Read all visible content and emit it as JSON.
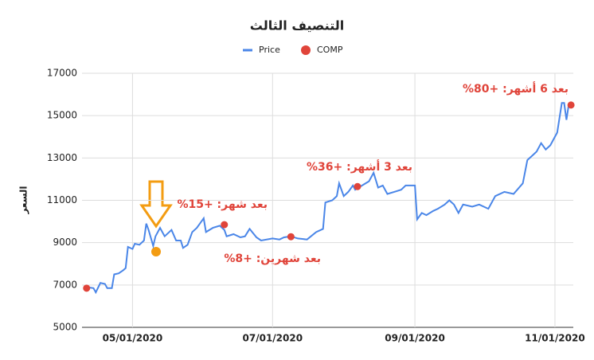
{
  "chart_data": {
    "type": "line",
    "title": "التنصيف الثالث",
    "y_label": "السعر",
    "xlim": [
      "04/09/2020",
      "11/09/2020"
    ],
    "xticks": [
      "05/01/2020",
      "07/01/2020",
      "09/01/2020",
      "11/01/2020"
    ],
    "ylim": [
      5000,
      17000
    ],
    "yticks": [
      5000,
      7000,
      9000,
      11000,
      13000,
      15000,
      17000
    ],
    "grid": true,
    "legend": "top",
    "series": [
      {
        "name": "Price",
        "color": "#4a86e8",
        "type": "line",
        "x": [
          "04/11/2020",
          "04/14/2020",
          "04/15/2020",
          "04/17/2020",
          "04/19/2020",
          "04/20/2020",
          "04/22/2020",
          "04/23/2020",
          "04/25/2020",
          "04/27/2020",
          "04/28/2020",
          "04/29/2020",
          "05/01/2020",
          "05/02/2020",
          "05/04/2020",
          "05/06/2020",
          "05/07/2020",
          "05/08/2020",
          "05/10/2020",
          "05/11/2020",
          "05/13/2020",
          "05/15/2020",
          "05/18/2020",
          "05/20/2020",
          "05/22/2020",
          "05/23/2020",
          "05/25/2020",
          "05/27/2020",
          "05/29/2020",
          "06/01/2020",
          "06/02/2020",
          "06/05/2020",
          "06/08/2020",
          "06/10/2020",
          "06/11/2020",
          "06/14/2020",
          "06/17/2020",
          "06/19/2020",
          "06/21/2020",
          "06/24/2020",
          "06/26/2020",
          "07/01/2020",
          "07/04/2020",
          "07/06/2020",
          "07/09/2020",
          "07/12/2020",
          "07/16/2020",
          "07/20/2020",
          "07/23/2020",
          "07/24/2020",
          "07/27/2020",
          "07/29/2020",
          "07/30/2020",
          "08/01/2020",
          "08/03/2020",
          "08/05/2020",
          "08/06/2020",
          "08/09/2020",
          "08/12/2020",
          "08/14/2020",
          "08/16/2020",
          "08/18/2020",
          "08/20/2020",
          "08/23/2020",
          "08/26/2020",
          "08/28/2020",
          "09/01/2020",
          "09/02/2020",
          "09/04/2020",
          "09/06/2020",
          "09/09/2020",
          "09/11/2020",
          "09/14/2020",
          "09/16/2020",
          "09/18/2020",
          "09/20/2020",
          "09/22/2020",
          "09/26/2020",
          "09/29/2020",
          "10/03/2020",
          "10/06/2020",
          "10/10/2020",
          "10/14/2020",
          "10/18/2020",
          "10/20/2020",
          "10/22/2020",
          "10/24/2020",
          "10/26/2020",
          "10/28/2020",
          "10/30/2020",
          "11/02/2020",
          "11/04/2020",
          "11/05/2020",
          "11/06/2020",
          "11/07/2020"
        ],
        "values": [
          6900,
          6850,
          6650,
          7100,
          7050,
          6850,
          6850,
          7500,
          7550,
          7700,
          7800,
          8800,
          8700,
          8950,
          8900,
          9100,
          9900,
          9600,
          8850,
          9300,
          9700,
          9300,
          9600,
          9100,
          9100,
          8750,
          8900,
          9500,
          9700,
          10150,
          9500,
          9700,
          9800,
          9600,
          9300,
          9400,
          9250,
          9300,
          9650,
          9250,
          9100,
          9200,
          9150,
          9250,
          9300,
          9200,
          9150,
          9500,
          9650,
          10900,
          11000,
          11200,
          11800,
          11200,
          11400,
          11700,
          11500,
          11700,
          11900,
          12300,
          11600,
          11700,
          11300,
          11400,
          11500,
          11700,
          11700,
          10100,
          10400,
          10300,
          10500,
          10600,
          10800,
          11000,
          10800,
          10400,
          10800,
          10700,
          10800,
          10600,
          11200,
          11400,
          11300,
          11800,
          12900,
          13100,
          13300,
          13700,
          13400,
          13600,
          14200,
          15600,
          15600,
          14800,
          15500
        ]
      },
      {
        "name": "COMP",
        "color": "#e0443a",
        "type": "scatter",
        "x": [
          "04/11/2020",
          "06/10/2020",
          "07/09/2020",
          "08/07/2020",
          "11/08/2020"
        ],
        "values": [
          6850,
          9850,
          9280,
          11650,
          15500
        ]
      }
    ],
    "annotations": [
      "بعد شهر: +15%",
      "بعد شهرين: +8%",
      "بعد 3 أشهر: +36%",
      "بعد 6 أشهر: +80%"
    ]
  }
}
